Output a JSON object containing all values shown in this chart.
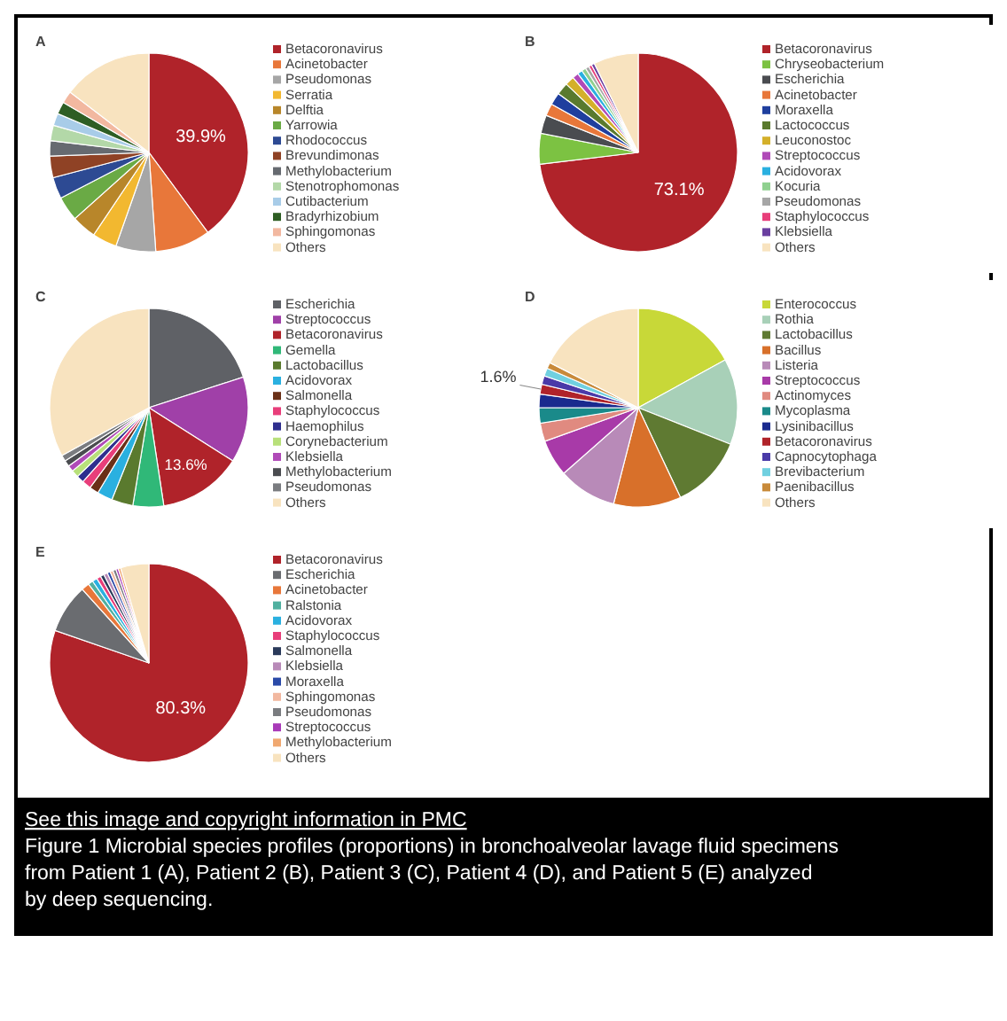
{
  "chart_data": [
    {
      "type": "pie",
      "title": "A",
      "categories": [
        "Betacoronavirus",
        "Acinetobacter",
        "Pseudomonas",
        "Serratia",
        "Delftia",
        "Yarrowia",
        "Rhodococcus",
        "Brevundimonas",
        "Methylobacterium",
        "Stenotrophomonas",
        "Cutibacterium",
        "Bradyrhizobium",
        "Sphingomonas",
        "Others"
      ],
      "values": [
        39.9,
        9,
        6.5,
        4,
        4,
        4,
        3.5,
        3.5,
        2.5,
        2.5,
        2,
        2,
        2,
        14.6
      ],
      "value_labels": [
        "39.9%",
        null,
        null,
        null,
        null,
        null,
        null,
        null,
        null,
        null,
        null,
        null,
        null,
        null
      ],
      "colors": [
        "#b0232a",
        "#e8773a",
        "#a6a6a6",
        "#f2b830",
        "#b8862a",
        "#6aaa45",
        "#2d4a93",
        "#8f4225",
        "#666a70",
        "#b3d8a8",
        "#a8cce8",
        "#2e5e24",
        "#f2b8a0",
        "#f8e3bf"
      ],
      "legend": "right"
    },
    {
      "type": "pie",
      "title": "B",
      "categories": [
        "Betacoronavirus",
        "Chryseobacterium",
        "Escherichia",
        "Acinetobacter",
        "Moraxella",
        "Lactococcus",
        "Leuconostoc",
        "Streptococcus",
        "Acidovorax",
        "Kocuria",
        "Pseudomonas",
        "Staphylococcus",
        "Klebsiella",
        "Others"
      ],
      "values": [
        73.1,
        5,
        3,
        2,
        2,
        2,
        1.5,
        1,
        0.8,
        0.7,
        0.6,
        0.5,
        0.5,
        7.3
      ],
      "value_labels": [
        "73.1%",
        null,
        null,
        null,
        null,
        null,
        null,
        null,
        null,
        null,
        null,
        null,
        null,
        null
      ],
      "colors": [
        "#b0232a",
        "#7cc242",
        "#4a4c50",
        "#e8773a",
        "#1f3f9e",
        "#5a7a2e",
        "#d4b02a",
        "#b04ab8",
        "#2ab0e0",
        "#8fd08f",
        "#a6a6a6",
        "#e83e7a",
        "#6a3fa0",
        "#f8e3bf"
      ],
      "legend": "right"
    },
    {
      "type": "pie",
      "title": "C",
      "categories": [
        "Escherichia",
        "Streptococcus",
        "Betacoronavirus",
        "Gemella",
        "Lactobacillus",
        "Acidovorax",
        "Salmonella",
        "Staphylococcus",
        "Haemophilus",
        "Corynebacterium",
        "Klebsiella",
        "Methylobacterium",
        "Pseudomonas",
        "Others"
      ],
      "values": [
        20,
        14,
        13.6,
        5,
        3.5,
        2.5,
        1.5,
        1.5,
        1.2,
        1.2,
        1,
        1,
        1,
        33
      ],
      "value_labels": [
        null,
        null,
        "13.6%",
        null,
        null,
        null,
        null,
        null,
        null,
        null,
        null,
        null,
        null,
        null
      ],
      "colors": [
        "#5f6166",
        "#a040a8",
        "#b0232a",
        "#30b878",
        "#5a7a2e",
        "#2ab0e0",
        "#6a3018",
        "#e83e7a",
        "#2e2e8e",
        "#b8e07a",
        "#b04ab8",
        "#4a4c50",
        "#7a7c80",
        "#f8e3bf"
      ],
      "legend": "right"
    },
    {
      "type": "pie",
      "title": "D",
      "categories": [
        "Enterococcus",
        "Rothia",
        "Lactobacillus",
        "Bacillus",
        "Listeria",
        "Streptococcus",
        "Actinomyces",
        "Mycoplasma",
        "Lysinibacillus",
        "Betacoronavirus",
        "Capnocytophaga",
        "Brevibacterium",
        "Paenibacillus",
        "Others"
      ],
      "values": [
        17,
        14,
        12,
        11,
        9.5,
        6,
        3,
        2.5,
        2.2,
        1.6,
        1.4,
        1.3,
        1,
        17.5
      ],
      "value_labels": [
        null,
        null,
        null,
        null,
        null,
        null,
        null,
        null,
        null,
        "1.6%",
        null,
        null,
        null,
        null
      ],
      "colors": [
        "#c8d838",
        "#a8d0b8",
        "#5f7a32",
        "#d8702a",
        "#b88ab8",
        "#a83aa8",
        "#e08a80",
        "#1a8a8a",
        "#1a2a8e",
        "#b0232a",
        "#4a3aa8",
        "#70d0e0",
        "#c88a3a",
        "#f8e3bf"
      ],
      "legend": "right"
    },
    {
      "type": "pie",
      "title": "E",
      "categories": [
        "Betacoronavirus",
        "Escherichia",
        "Acinetobacter",
        "Ralstonia",
        "Acidovorax",
        "Staphylococcus",
        "Salmonella",
        "Klebsiella",
        "Moraxella",
        "Sphingomonas",
        "Pseudomonas",
        "Streptococcus",
        "Methylobacterium",
        "Others"
      ],
      "values": [
        80.3,
        8,
        1.3,
        0.8,
        0.8,
        0.7,
        0.6,
        0.6,
        0.5,
        0.5,
        0.5,
        0.4,
        0.4,
        4.6
      ],
      "value_labels": [
        "80.3%",
        null,
        null,
        null,
        null,
        null,
        null,
        null,
        null,
        null,
        null,
        null,
        null,
        null
      ],
      "colors": [
        "#b0232a",
        "#6a6c70",
        "#e8773a",
        "#50b0a0",
        "#2ab0e0",
        "#e83e7a",
        "#2a3a5a",
        "#b88ab8",
        "#2a4aa8",
        "#f2b8a0",
        "#7a7c80",
        "#a83ab8",
        "#f0a870",
        "#f8e3bf"
      ],
      "legend": "right",
      "annotations": [
        "See this image and copyright information in PMC",
        "Figure 1 Microbial species profiles (proportions) in bronchoalveolar lavage fluid specimens from Patient 1 (A), Patient 2 (B), Patient 3 (C), Patient 4 (D), and Patient 5 (E) analyzed by deep sequencing."
      ]
    }
  ]
}
